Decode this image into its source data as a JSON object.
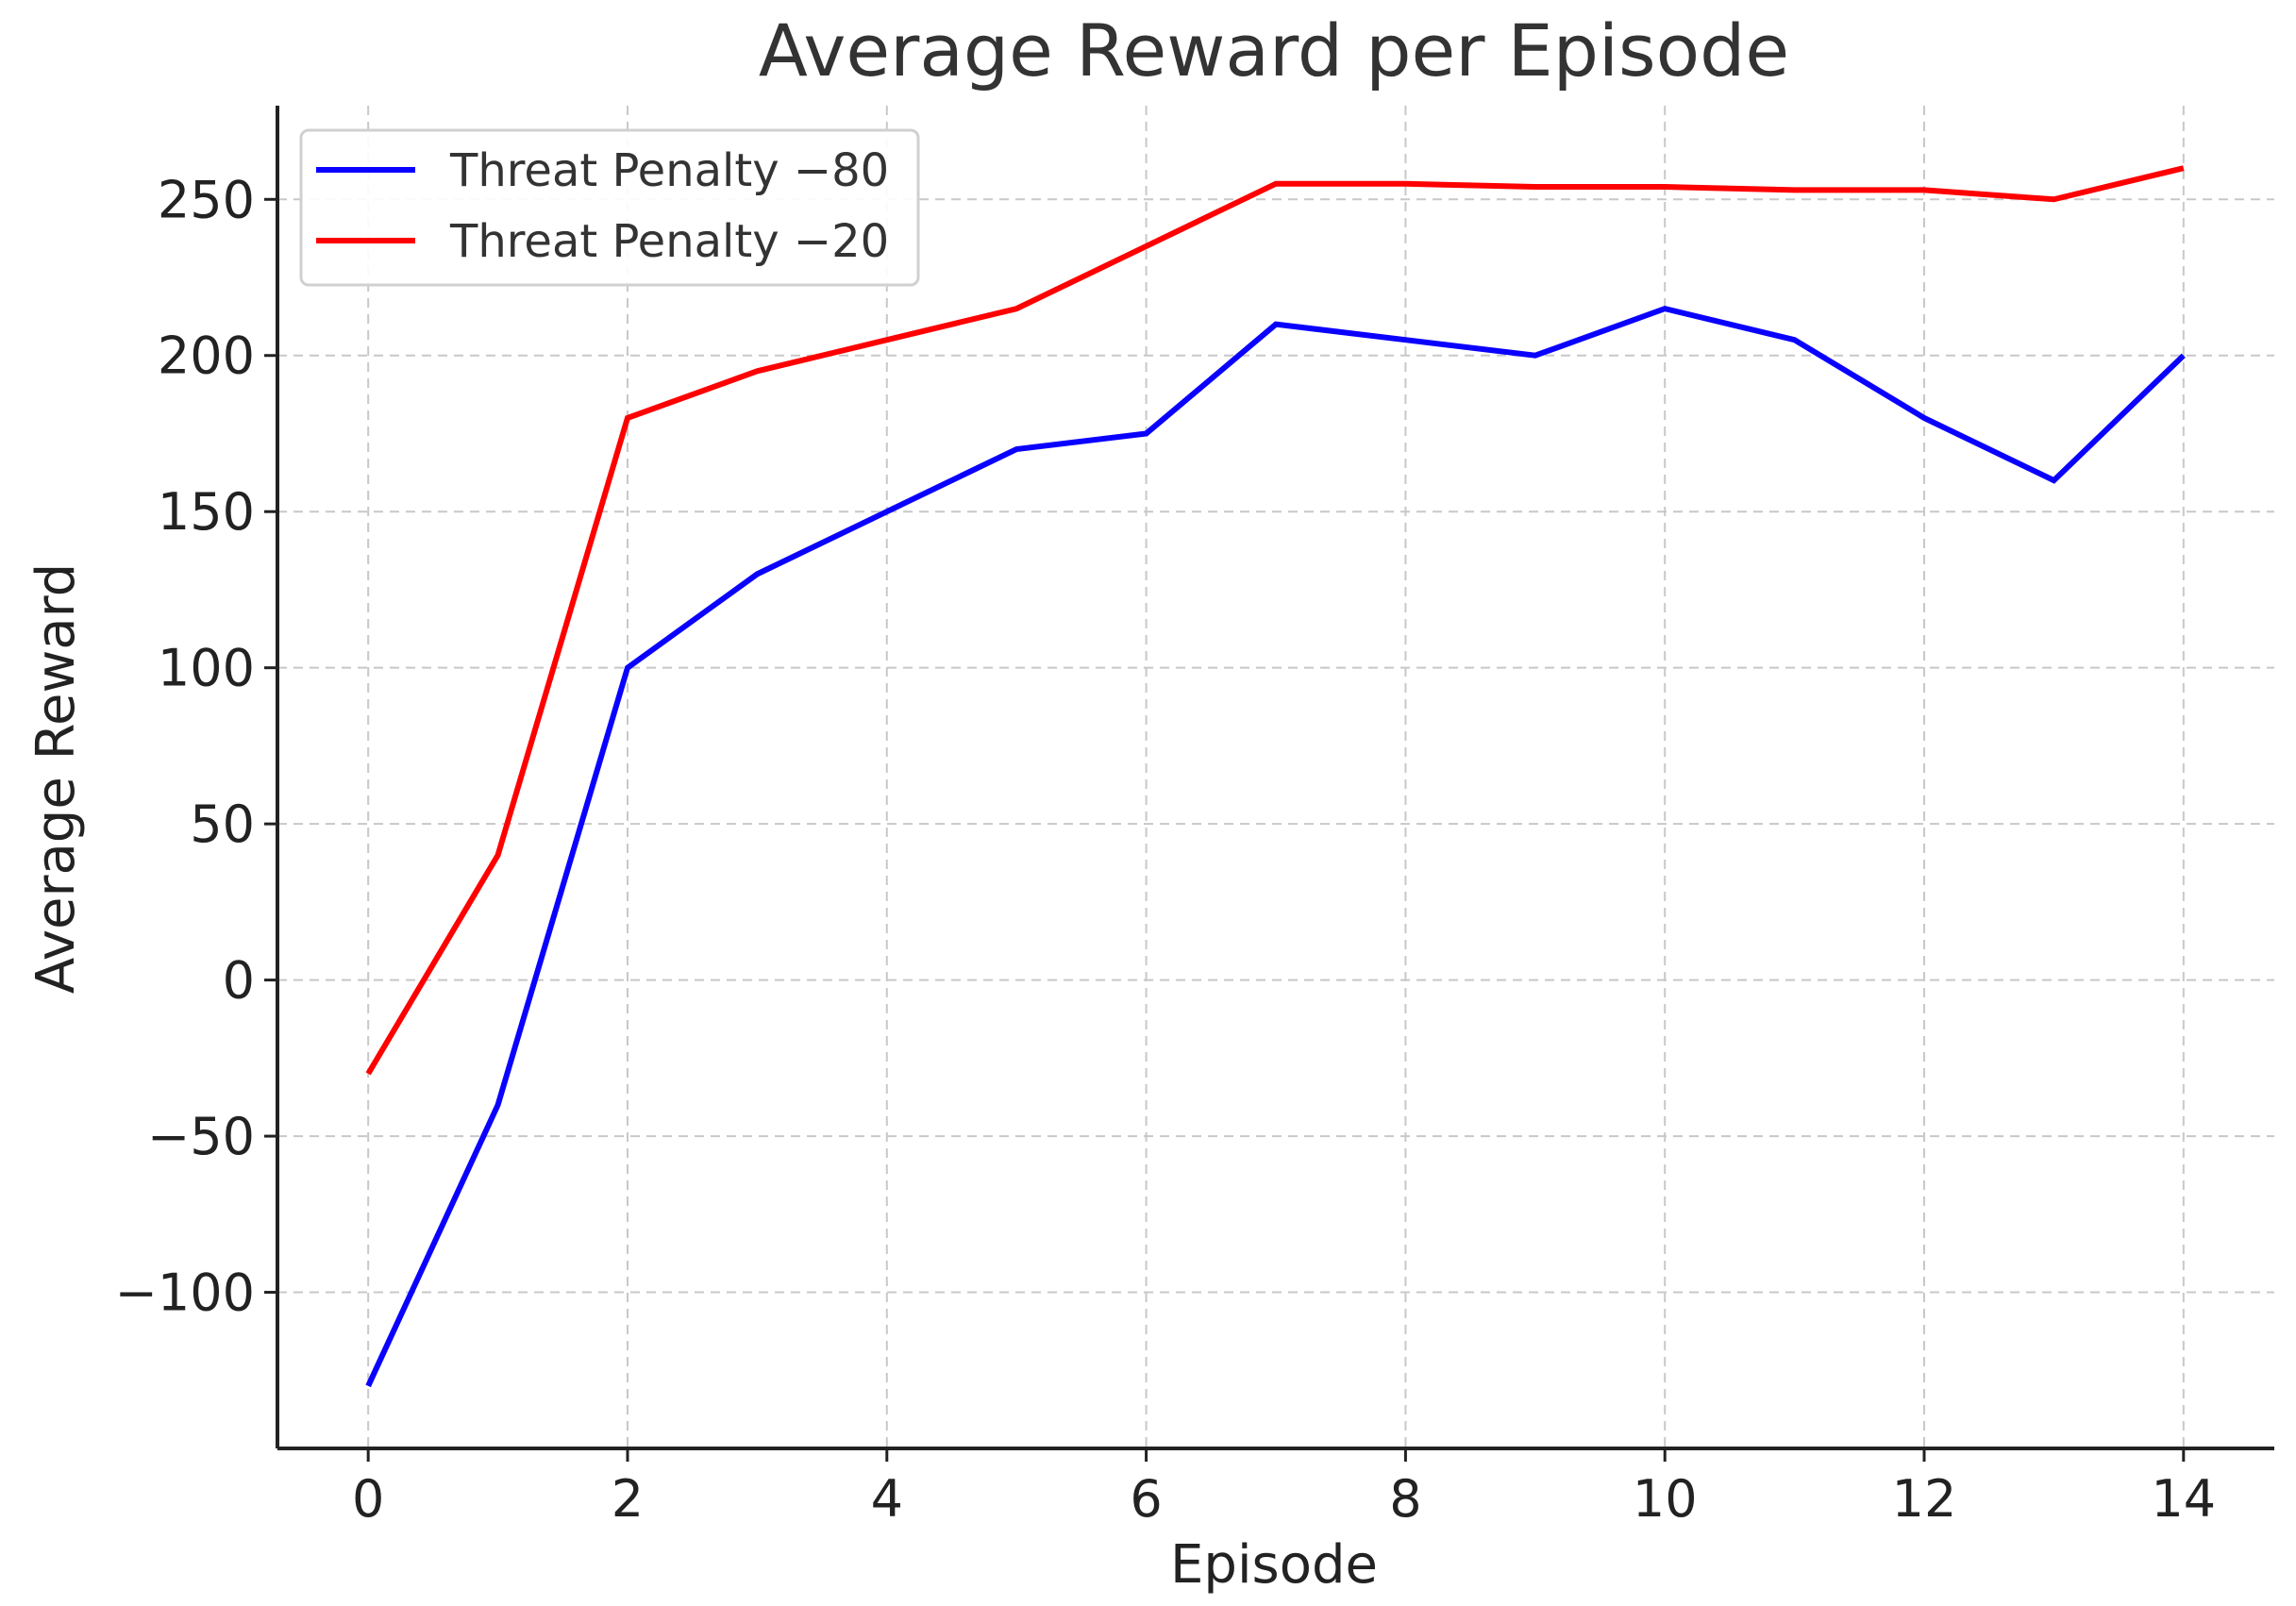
{
  "chart_data": {
    "type": "line",
    "title": "Average Reward per Episode",
    "xlabel": "Episode",
    "ylabel": "Average Reward",
    "x": [
      0,
      1,
      2,
      3,
      4,
      5,
      6,
      7,
      8,
      9,
      10,
      11,
      12,
      13,
      14
    ],
    "xlim": [
      -0.7,
      14.7
    ],
    "ylim": [
      -150,
      280
    ],
    "x_ticks": [
      0,
      2,
      4,
      6,
      8,
      10,
      12,
      14
    ],
    "x_tick_labels": [
      "0",
      "2",
      "4",
      "6",
      "8",
      "10",
      "12",
      "14"
    ],
    "y_ticks": [
      -100,
      -50,
      0,
      50,
      100,
      150,
      200,
      250
    ],
    "y_tick_labels": [
      "−100",
      "−50",
      "0",
      "50",
      "100",
      "150",
      "200",
      "250"
    ],
    "grid": true,
    "legend_position": "top-left",
    "series": [
      {
        "name": "Threat Penalty −80",
        "color": "#0a00ff",
        "values": [
          -130,
          -40,
          100,
          130,
          150,
          170,
          175,
          210,
          205,
          200,
          215,
          205,
          180,
          160,
          200
        ]
      },
      {
        "name": "Threat Penalty −20",
        "color": "#ff0000",
        "values": [
          -30,
          40,
          180,
          195,
          205,
          215,
          235,
          255,
          255,
          254,
          254,
          253,
          253,
          250,
          260
        ]
      }
    ]
  }
}
